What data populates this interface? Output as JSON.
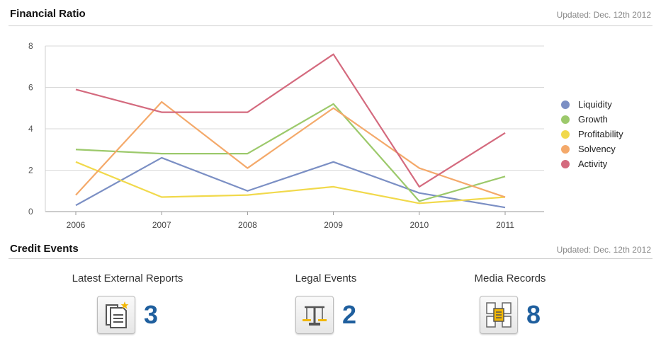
{
  "financial": {
    "title": "Financial Ratio",
    "updated": "Updated: Dec. 12th 2012"
  },
  "chart_data": {
    "type": "line",
    "categories": [
      "2006",
      "2007",
      "2008",
      "2009",
      "2010",
      "2011"
    ],
    "y_ticks": [
      "0",
      "2",
      "4",
      "6",
      "8"
    ],
    "ylim": [
      0,
      8
    ],
    "grid": true,
    "legend_position": "right",
    "series": [
      {
        "name": "Liquidity",
        "color": "#7b8fc4",
        "values": [
          0.3,
          2.6,
          1.0,
          2.4,
          0.9,
          0.2
        ]
      },
      {
        "name": "Growth",
        "color": "#9cc96b",
        "values": [
          3.0,
          2.8,
          2.8,
          5.2,
          0.5,
          1.7
        ]
      },
      {
        "name": "Profitability",
        "color": "#f1d94b",
        "values": [
          2.4,
          0.7,
          0.8,
          1.2,
          0.4,
          0.7
        ]
      },
      {
        "name": "Solvency",
        "color": "#f4a96a",
        "values": [
          0.8,
          5.3,
          2.1,
          5.0,
          2.1,
          0.7
        ]
      },
      {
        "name": "Activity",
        "color": "#d46a7e",
        "values": [
          5.9,
          4.8,
          4.8,
          7.6,
          1.2,
          3.8
        ]
      }
    ]
  },
  "credit": {
    "title": "Credit Events",
    "updated": "Updated: Dec. 12th 2012",
    "items": [
      {
        "label": "Latest External Reports",
        "count": "3",
        "icon": "report-icon"
      },
      {
        "label": "Legal Events",
        "count": "2",
        "icon": "scales-icon"
      },
      {
        "label": "Media Records",
        "count": "8",
        "icon": "media-records-icon"
      }
    ]
  }
}
